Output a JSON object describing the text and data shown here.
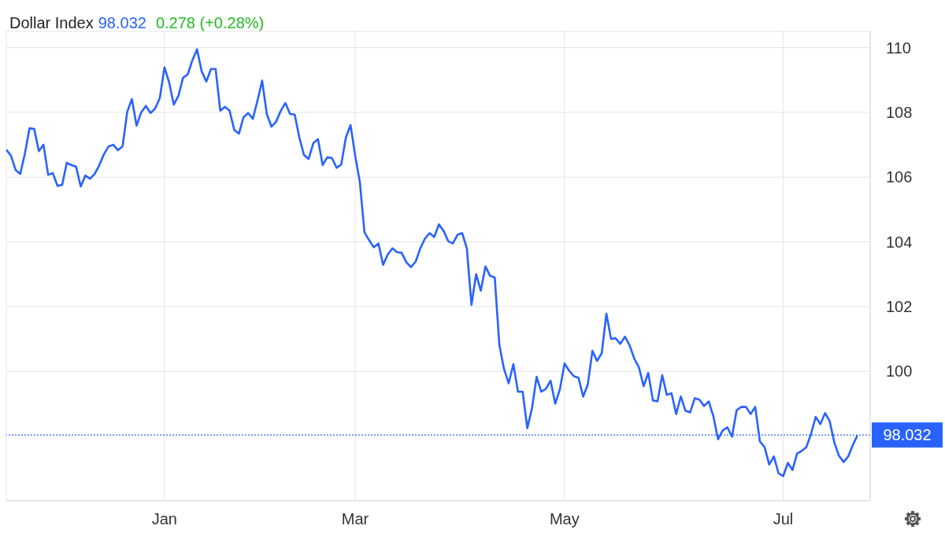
{
  "chart_data": {
    "type": "line",
    "title": "Dollar Index",
    "subtitle": "98.032",
    "annotations": [
      "0.278 (+0.28%)"
    ],
    "color": "#2962ff",
    "categories": [
      null,
      null,
      null,
      null,
      null,
      null,
      null,
      null,
      null,
      null,
      null,
      null,
      null,
      null,
      null,
      null,
      null,
      null,
      null,
      null,
      null,
      null,
      null,
      null,
      null,
      null,
      null,
      null,
      null,
      null,
      null,
      null,
      null,
      null,
      "Jan",
      null,
      null,
      null,
      null,
      null,
      null,
      null,
      null,
      null,
      null,
      null,
      null,
      null,
      null,
      null,
      null,
      null,
      null,
      null,
      null,
      null,
      null,
      null,
      null,
      null,
      null,
      null,
      null,
      null,
      null,
      null,
      null,
      null,
      null,
      null,
      null,
      null,
      null,
      null,
      null,
      "Mar",
      null,
      null,
      null,
      null,
      null,
      null,
      null,
      null,
      null,
      null,
      null,
      null,
      null,
      null,
      null,
      null,
      null,
      null,
      null,
      null,
      null,
      null,
      null,
      null,
      null,
      null,
      null,
      null,
      null,
      null,
      null,
      null,
      null,
      null,
      null,
      null,
      null,
      null,
      null,
      null,
      null,
      null,
      null,
      null,
      "May",
      null,
      null,
      null,
      null,
      null,
      null,
      null,
      null,
      null,
      null,
      null,
      null,
      null,
      null,
      null,
      null,
      null,
      null,
      null,
      null,
      null,
      null,
      null,
      null,
      null,
      null,
      null,
      null,
      null,
      null,
      null,
      null,
      null,
      null,
      null,
      null,
      null,
      null,
      null,
      null,
      null,
      null,
      null,
      null,
      null,
      null,
      "Jul",
      null,
      null,
      null,
      null,
      null,
      null,
      null,
      null,
      null,
      null,
      null,
      null,
      null,
      null,
      null,
      null
    ],
    "values": [
      106.85,
      106.66,
      106.22,
      106.1,
      106.73,
      107.51,
      107.49,
      106.8,
      107.0,
      106.07,
      106.12,
      105.73,
      105.76,
      106.44,
      106.37,
      106.32,
      105.71,
      106.05,
      105.95,
      106.1,
      106.37,
      106.71,
      106.95,
      107.0,
      106.83,
      106.95,
      108.02,
      108.41,
      107.59,
      108.0,
      108.2,
      107.98,
      108.12,
      108.44,
      109.39,
      108.93,
      108.24,
      108.51,
      109.07,
      109.17,
      109.61,
      109.95,
      109.27,
      108.95,
      109.34,
      109.34,
      108.05,
      108.17,
      108.05,
      107.46,
      107.34,
      107.85,
      107.98,
      107.8,
      108.37,
      108.98,
      107.95,
      107.56,
      107.71,
      108.05,
      108.29,
      107.95,
      107.93,
      107.22,
      106.68,
      106.56,
      107.05,
      107.17,
      106.37,
      106.61,
      106.59,
      106.29,
      106.39,
      107.22,
      107.61,
      106.66,
      105.85,
      104.29,
      104.05,
      103.83,
      103.95,
      103.29,
      103.61,
      103.8,
      103.68,
      103.66,
      103.37,
      103.22,
      103.39,
      103.8,
      104.1,
      104.27,
      104.15,
      104.54,
      104.34,
      104.02,
      103.95,
      104.22,
      104.27,
      103.8,
      102.05,
      103.0,
      102.49,
      103.24,
      102.95,
      102.9,
      100.8,
      100.07,
      99.63,
      100.22,
      99.37,
      99.37,
      98.24,
      98.85,
      99.83,
      99.37,
      99.46,
      99.71,
      99.0,
      99.44,
      100.24,
      100.02,
      99.85,
      99.8,
      99.22,
      99.59,
      100.63,
      100.32,
      100.56,
      101.78,
      101.0,
      101.02,
      100.85,
      101.07,
      100.8,
      100.39,
      100.12,
      99.54,
      99.95,
      99.1,
      99.07,
      99.88,
      99.27,
      99.32,
      98.68,
      99.22,
      98.78,
      98.73,
      99.17,
      99.12,
      98.93,
      99.07,
      98.61,
      97.9,
      98.17,
      98.27,
      97.98,
      98.8,
      98.9,
      98.9,
      98.68,
      98.9,
      97.83,
      97.66,
      97.12,
      97.37,
      96.85,
      96.76,
      97.17,
      96.95,
      97.46,
      97.54,
      97.66,
      98.07,
      98.59,
      98.37,
      98.71,
      98.46,
      97.8,
      97.39,
      97.2,
      97.37,
      97.73,
      98.03
    ],
    "ylim": [
      96,
      110.5
    ],
    "yticks": [
      100,
      102,
      104,
      106,
      108,
      110
    ],
    "ref_lines": [
      {
        "axis": "y",
        "value": 98.032,
        "label": "98.032",
        "color": "#2962ff",
        "line_style": "dotted"
      }
    ],
    "grid": true
  }
}
